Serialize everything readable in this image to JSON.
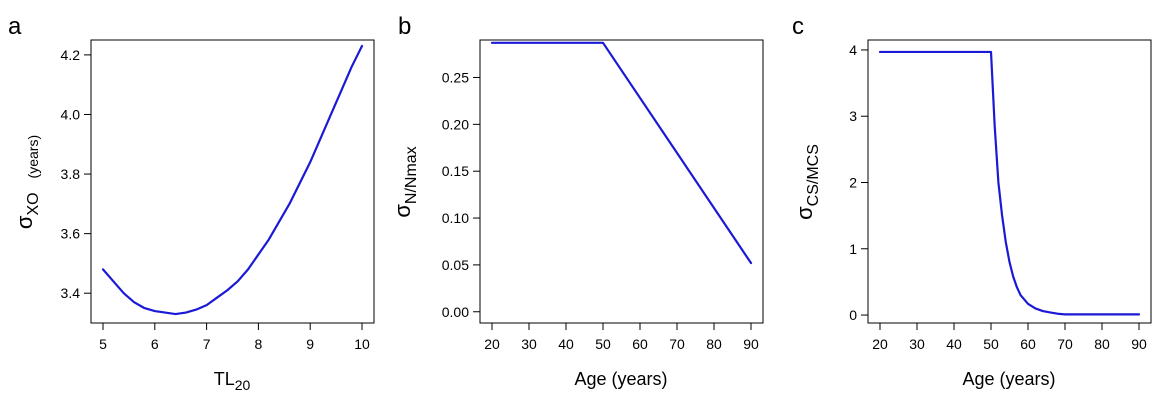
{
  "chart_data": [
    {
      "type": "line",
      "panel": "a",
      "xlabel": "TL",
      "xlabel_sub": "20",
      "ylabel_symbol": "σ",
      "ylabel_sub": "XO",
      "ylabel_unit": "(years)",
      "xlim": [
        5,
        10
      ],
      "ylim": [
        3.3,
        4.25
      ],
      "xticks": [
        5,
        6,
        7,
        8,
        9,
        10
      ],
      "yticks": [
        "3.4",
        "3.6",
        "3.8",
        "4.0",
        "4.2"
      ],
      "line_color": "#1a1ad6",
      "series": [
        {
          "x": [
            5.0,
            5.2,
            5.4,
            5.6,
            5.8,
            6.0,
            6.2,
            6.4,
            6.6,
            6.8,
            7.0,
            7.2,
            7.4,
            7.6,
            7.8,
            8.0,
            8.2,
            8.4,
            8.6,
            8.8,
            9.0,
            9.2,
            9.4,
            9.6,
            9.8,
            10.0
          ],
          "y": [
            3.48,
            3.44,
            3.4,
            3.37,
            3.35,
            3.34,
            3.335,
            3.33,
            3.335,
            3.345,
            3.36,
            3.385,
            3.41,
            3.44,
            3.48,
            3.53,
            3.58,
            3.64,
            3.7,
            3.77,
            3.84,
            3.92,
            4.0,
            4.08,
            4.16,
            4.23
          ]
        }
      ]
    },
    {
      "type": "line",
      "panel": "b",
      "xlabel": "Age (years)",
      "ylabel_symbol": "σ",
      "ylabel_sub": "N/Nmax",
      "xlim": [
        20,
        90
      ],
      "ylim": [
        -0.012,
        0.29
      ],
      "xticks": [
        20,
        30,
        40,
        50,
        60,
        70,
        80,
        90
      ],
      "yticks": [
        "0.00",
        "0.05",
        "0.10",
        "0.15",
        "0.20",
        "0.25"
      ],
      "line_color": "#1a1ad6",
      "series": [
        {
          "x": [
            20,
            50,
            90
          ],
          "y": [
            0.287,
            0.287,
            0.052
          ]
        }
      ]
    },
    {
      "type": "line",
      "panel": "c",
      "xlabel": "Age (years)",
      "ylabel_symbol": "σ",
      "ylabel_sub": "CS/MCS",
      "xlim": [
        20,
        90
      ],
      "ylim": [
        -0.12,
        4.15
      ],
      "xticks": [
        20,
        30,
        40,
        50,
        60,
        70,
        80,
        90
      ],
      "yticks": [
        "0",
        "1",
        "2",
        "3",
        "4"
      ],
      "line_color": "#1a1ad6",
      "series": [
        {
          "x": [
            20,
            50,
            51,
            52,
            53,
            54,
            55,
            56,
            57,
            58,
            60,
            62,
            64,
            66,
            68,
            70,
            80,
            90
          ],
          "y": [
            3.97,
            3.97,
            2.85,
            2.0,
            1.5,
            1.1,
            0.8,
            0.58,
            0.42,
            0.3,
            0.17,
            0.1,
            0.06,
            0.04,
            0.02,
            0.01,
            0.01,
            0.01
          ]
        }
      ]
    }
  ]
}
